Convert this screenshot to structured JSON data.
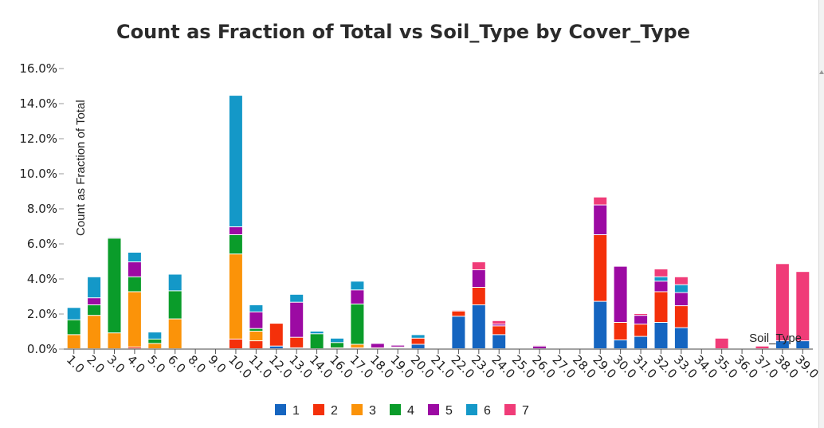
{
  "chart_data": {
    "type": "bar",
    "stacked": true,
    "title": "Count as Fraction of Total vs Soil_Type by Cover_Type",
    "xlabel": "Soil_Type",
    "ylabel": "Count as Fraction of Total",
    "ylim": [
      0,
      16
    ],
    "yticks": [
      "0.0%",
      "2.0%",
      "4.0%",
      "6.0%",
      "8.0%",
      "10.0%",
      "12.0%",
      "14.0%",
      "16.0%"
    ],
    "categories": [
      "1.0",
      "2.0",
      "3.0",
      "4.0",
      "5.0",
      "6.0",
      "8.0",
      "9.0",
      "10.0",
      "11.0",
      "12.0",
      "13.0",
      "14.0",
      "16.0",
      "17.0",
      "18.0",
      "19.0",
      "20.0",
      "21.0",
      "22.0",
      "23.0",
      "24.0",
      "25.0",
      "26.0",
      "27.0",
      "28.0",
      "29.0",
      "30.0",
      "31.0",
      "32.0",
      "33.0",
      "34.0",
      "35.0",
      "36.0",
      "37.0",
      "38.0",
      "39.0"
    ],
    "legend_position": "bottom",
    "series": [
      {
        "name": "1",
        "color": "#1565c0",
        "values": [
          0,
          0,
          0,
          0,
          0,
          0,
          0,
          0,
          0,
          0,
          0.15,
          0.05,
          0,
          0,
          0,
          0,
          0.05,
          0.25,
          0,
          1.85,
          2.5,
          0.8,
          0,
          0,
          0,
          0,
          2.7,
          0.5,
          0.7,
          1.5,
          1.2,
          0,
          0,
          0,
          0,
          0.45,
          0.45
        ]
      },
      {
        "name": "2",
        "color": "#f4300a",
        "values": [
          0,
          0,
          0,
          0.1,
          0,
          0,
          0,
          0,
          0.55,
          0.45,
          1.3,
          0.6,
          0,
          0.05,
          0.05,
          0.05,
          0.05,
          0.35,
          0,
          0.3,
          1.0,
          0.5,
          0,
          0,
          0,
          0,
          3.8,
          1.0,
          0.7,
          1.75,
          1.25,
          0,
          0,
          0,
          0,
          0,
          0
        ]
      },
      {
        "name": "3",
        "color": "#fb9309",
        "values": [
          0.8,
          1.9,
          0.9,
          3.15,
          0.3,
          1.7,
          0,
          0,
          4.85,
          0.55,
          0,
          0,
          0,
          0,
          0.2,
          0,
          0,
          0,
          0,
          0,
          0,
          0,
          0,
          0,
          0,
          0,
          0,
          0,
          0,
          0,
          0,
          0,
          0,
          0,
          0,
          0,
          0
        ]
      },
      {
        "name": "4",
        "color": "#0a9c2a",
        "values": [
          0.85,
          0.6,
          5.4,
          0.85,
          0.25,
          1.6,
          0,
          0,
          1.1,
          0.15,
          0,
          0,
          0.85,
          0.3,
          2.3,
          0,
          0,
          0,
          0,
          0,
          0,
          0,
          0,
          0,
          0,
          0,
          0,
          0,
          0,
          0,
          0,
          0,
          0,
          0,
          0,
          0,
          0
        ]
      },
      {
        "name": "5",
        "color": "#9c0aa3",
        "values": [
          0,
          0.4,
          0.05,
          0.85,
          0,
          0,
          0,
          0,
          0.45,
          0.95,
          0,
          2.0,
          0,
          0,
          0.8,
          0.25,
          0.1,
          0,
          0,
          0.05,
          1.0,
          0.1,
          0,
          0.15,
          0,
          0,
          1.7,
          3.2,
          0.5,
          0.6,
          0.75,
          0,
          0,
          0,
          0,
          0,
          0
        ]
      },
      {
        "name": "6",
        "color": "#1498c8",
        "values": [
          0.7,
          1.2,
          0.05,
          0.55,
          0.4,
          0.95,
          0,
          0,
          7.5,
          0.4,
          0,
          0.45,
          0.15,
          0.25,
          0.5,
          0,
          0,
          0.2,
          0,
          0,
          0,
          0,
          0,
          0,
          0,
          0,
          0,
          0,
          0,
          0.25,
          0.45,
          0,
          0,
          0,
          0,
          0,
          0
        ]
      },
      {
        "name": "7",
        "color": "#f03c78",
        "values": [
          0,
          0,
          0,
          0,
          0,
          0,
          0,
          0,
          0,
          0,
          0,
          0,
          0,
          0,
          0,
          0,
          0,
          0,
          0,
          0,
          0.45,
          0.2,
          0,
          0.05,
          0,
          0,
          0.45,
          0,
          0.1,
          0.45,
          0.45,
          0,
          0.6,
          0,
          0.15,
          4.4,
          3.95
        ]
      }
    ]
  }
}
